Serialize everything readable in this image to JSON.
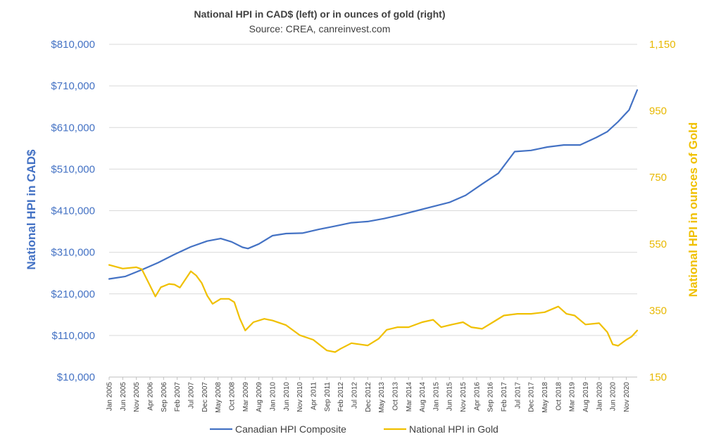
{
  "chart_data": {
    "type": "line",
    "title": "National HPI in CAD$ (left) or in ounces of gold (right)",
    "subtitle": "Source: CREA, canreinvest.com",
    "ylabel": "National HPI in CAD$",
    "y2label": "National HPI in ounces of Gold",
    "ylim": [
      10000,
      810000
    ],
    "y2lim": [
      150,
      1150
    ],
    "y_ticks": [
      "$10,000",
      "$110,000",
      "$210,000",
      "$310,000",
      "$410,000",
      "$510,000",
      "$610,000",
      "$710,000",
      "$810,000"
    ],
    "y2_ticks": [
      "150",
      "350",
      "550",
      "750",
      "950",
      "1,150"
    ],
    "y_tick_values": [
      10000,
      110000,
      210000,
      310000,
      410000,
      510000,
      610000,
      710000,
      810000
    ],
    "y2_tick_values": [
      150,
      350,
      550,
      750,
      950,
      1150
    ],
    "x_start": "Jan 2005",
    "x_end": "Mar 2021",
    "x_ticks": [
      "Jan 2005",
      "Jun 2005",
      "Nov 2005",
      "Apr 2006",
      "Sep 2006",
      "Feb 2007",
      "Jul 2007",
      "Dec 2007",
      "May 2008",
      "Oct 2008",
      "Mar 2009",
      "Aug 2009",
      "Jan 2010",
      "Jun 2010",
      "Nov 2010",
      "Apr 2011",
      "Sep 2011",
      "Feb 2012",
      "Jul 2012",
      "Dec 2012",
      "May 2013",
      "Oct 2013",
      "Mar 2014",
      "Aug 2014",
      "Jan 2015",
      "Jun 2015",
      "Nov 2015",
      "Apr 2016",
      "Sep 2016",
      "Feb 2017",
      "Jul 2017",
      "Dec 2017",
      "May 2018",
      "Oct 2018",
      "Mar 2019",
      "Aug 2019",
      "Jan 2020",
      "Jun 2020",
      "Nov 2020"
    ],
    "grid": true,
    "legend_position": "bottom",
    "series": [
      {
        "name": "Canadian HPI Composite",
        "axis": "left",
        "color": "#4472c4",
        "points": [
          [
            "Jan 2005",
            246000
          ],
          [
            "Jul 2005",
            252000
          ],
          [
            "Jan 2006",
            268000
          ],
          [
            "Jul 2006",
            285000
          ],
          [
            "Jan 2007",
            305000
          ],
          [
            "Jul 2007",
            323000
          ],
          [
            "Jan 2008",
            337000
          ],
          [
            "Jun 2008",
            343000
          ],
          [
            "Oct 2008",
            335000
          ],
          [
            "Feb 2009",
            322000
          ],
          [
            "Apr 2009",
            319000
          ],
          [
            "Aug 2009",
            330000
          ],
          [
            "Jan 2010",
            350000
          ],
          [
            "Jun 2010",
            355000
          ],
          [
            "Dec 2010",
            356000
          ],
          [
            "Jun 2011",
            365000
          ],
          [
            "Dec 2011",
            373000
          ],
          [
            "Jun 2012",
            381000
          ],
          [
            "Dec 2012",
            384000
          ],
          [
            "Jun 2013",
            391000
          ],
          [
            "Dec 2013",
            400000
          ],
          [
            "Jun 2014",
            410000
          ],
          [
            "Dec 2014",
            420000
          ],
          [
            "Jun 2015",
            430000
          ],
          [
            "Dec 2015",
            447000
          ],
          [
            "Jun 2016",
            474000
          ],
          [
            "Dec 2016",
            500000
          ],
          [
            "Jun 2017",
            552000
          ],
          [
            "Dec 2017",
            555000
          ],
          [
            "Jun 2018",
            563000
          ],
          [
            "Dec 2018",
            568000
          ],
          [
            "Jun 2019",
            568000
          ],
          [
            "Dec 2019",
            586000
          ],
          [
            "Apr 2020",
            600000
          ],
          [
            "Aug 2020",
            624000
          ],
          [
            "Dec 2020",
            652000
          ],
          [
            "Mar 2021",
            700000
          ]
        ]
      },
      {
        "name": "National HPI in Gold",
        "axis": "right",
        "color": "#f0c000",
        "points": [
          [
            "Jan 2005",
            487
          ],
          [
            "Jun 2005",
            476
          ],
          [
            "Nov 2005",
            480
          ],
          [
            "Jan 2006",
            474
          ],
          [
            "Apr 2006",
            425
          ],
          [
            "Jun 2006",
            392
          ],
          [
            "Aug 2006",
            420
          ],
          [
            "Nov 2006",
            430
          ],
          [
            "Jan 2007",
            428
          ],
          [
            "Mar 2007",
            419
          ],
          [
            "Jul 2007",
            468
          ],
          [
            "Sep 2007",
            455
          ],
          [
            "Nov 2007",
            433
          ],
          [
            "Jan 2008",
            395
          ],
          [
            "Mar 2008",
            370
          ],
          [
            "Jun 2008",
            385
          ],
          [
            "Sep 2008",
            385
          ],
          [
            "Nov 2008",
            375
          ],
          [
            "Jan 2009",
            326
          ],
          [
            "Mar 2009",
            290
          ],
          [
            "Jun 2009",
            315
          ],
          [
            "Oct 2009",
            325
          ],
          [
            "Jan 2010",
            320
          ],
          [
            "Jun 2010",
            306
          ],
          [
            "Nov 2010",
            276
          ],
          [
            "Apr 2011",
            262
          ],
          [
            "Sep 2011",
            230
          ],
          [
            "Dec 2011",
            225
          ],
          [
            "Feb 2012",
            235
          ],
          [
            "Jun 2012",
            252
          ],
          [
            "Dec 2012",
            245
          ],
          [
            "Apr 2013",
            265
          ],
          [
            "Jul 2013",
            292
          ],
          [
            "Nov 2013",
            300
          ],
          [
            "Mar 2014",
            300
          ],
          [
            "Aug 2014",
            315
          ],
          [
            "Dec 2014",
            322
          ],
          [
            "Mar 2015",
            300
          ],
          [
            "Jul 2015",
            308
          ],
          [
            "Nov 2015",
            315
          ],
          [
            "Feb 2016",
            300
          ],
          [
            "Jun 2016",
            295
          ],
          [
            "Oct 2016",
            315
          ],
          [
            "Feb 2017",
            335
          ],
          [
            "Jul 2017",
            340
          ],
          [
            "Dec 2017",
            340
          ],
          [
            "May 2018",
            345
          ],
          [
            "Oct 2018",
            362
          ],
          [
            "Jan 2019",
            340
          ],
          [
            "Apr 2019",
            335
          ],
          [
            "Aug 2019",
            308
          ],
          [
            "Jan 2020",
            312
          ],
          [
            "Apr 2020",
            285
          ],
          [
            "Jun 2020",
            248
          ],
          [
            "Aug 2020",
            244
          ],
          [
            "Nov 2020",
            262
          ],
          [
            "Jan 2021",
            272
          ],
          [
            "Mar 2021",
            290
          ]
        ]
      }
    ]
  }
}
